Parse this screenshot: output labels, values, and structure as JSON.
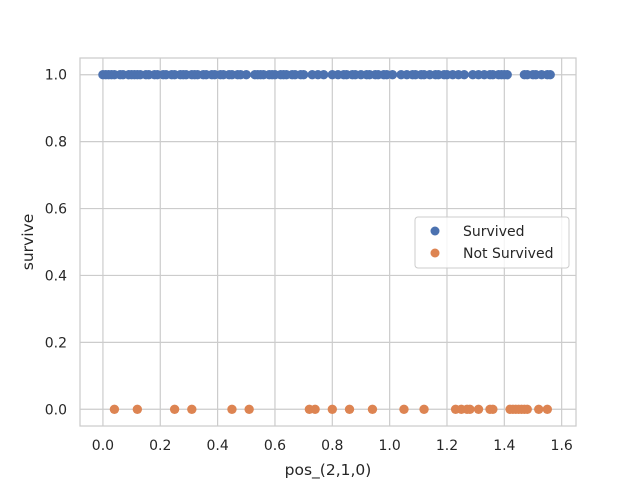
{
  "chart_data": {
    "type": "scatter",
    "title": "",
    "xlabel": "pos_(2,1,0)",
    "ylabel": "survive",
    "xlim": [
      -0.08,
      1.65
    ],
    "ylim": [
      -0.05,
      1.05
    ],
    "x_ticks": [
      "0.0",
      "0.2",
      "0.4",
      "0.6",
      "0.8",
      "1.0",
      "1.2",
      "1.4",
      "1.6"
    ],
    "x_tick_values": [
      0.0,
      0.2,
      0.4,
      0.6,
      0.8,
      1.0,
      1.2,
      1.4,
      1.6
    ],
    "y_ticks": [
      "0.0",
      "0.2",
      "0.4",
      "0.6",
      "0.8",
      "1.0"
    ],
    "y_tick_values": [
      0.0,
      0.2,
      0.4,
      0.6,
      0.8,
      1.0
    ],
    "grid": true,
    "legend_position": "center-right",
    "series": [
      {
        "name": "Survived",
        "color": "#4c72b0",
        "y": 1.0,
        "x": [
          0.0,
          0.01,
          0.02,
          0.03,
          0.04,
          0.06,
          0.07,
          0.09,
          0.1,
          0.11,
          0.12,
          0.13,
          0.15,
          0.16,
          0.18,
          0.19,
          0.21,
          0.22,
          0.24,
          0.25,
          0.27,
          0.28,
          0.29,
          0.31,
          0.32,
          0.33,
          0.35,
          0.36,
          0.38,
          0.39,
          0.41,
          0.42,
          0.44,
          0.45,
          0.47,
          0.48,
          0.5,
          0.53,
          0.54,
          0.55,
          0.56,
          0.58,
          0.59,
          0.6,
          0.62,
          0.63,
          0.64,
          0.66,
          0.67,
          0.69,
          0.7,
          0.73,
          0.75,
          0.77,
          0.8,
          0.82,
          0.84,
          0.85,
          0.87,
          0.88,
          0.9,
          0.92,
          0.93,
          0.95,
          0.96,
          0.98,
          0.99,
          1.01,
          1.04,
          1.06,
          1.08,
          1.09,
          1.11,
          1.12,
          1.14,
          1.16,
          1.17,
          1.19,
          1.2,
          1.22,
          1.24,
          1.26,
          1.29,
          1.31,
          1.33,
          1.35,
          1.36,
          1.38,
          1.39,
          1.4,
          1.41,
          1.47,
          1.48,
          1.5,
          1.51,
          1.53,
          1.55,
          1.56
        ]
      },
      {
        "name": "Not Survived",
        "color": "#dd8452",
        "y": 0.0,
        "x": [
          0.04,
          0.12,
          0.25,
          0.31,
          0.45,
          0.51,
          0.72,
          0.74,
          0.8,
          0.86,
          0.94,
          1.05,
          1.12,
          1.23,
          1.25,
          1.27,
          1.28,
          1.31,
          1.35,
          1.36,
          1.42,
          1.43,
          1.44,
          1.45,
          1.46,
          1.47,
          1.48,
          1.52,
          1.55
        ]
      }
    ]
  }
}
